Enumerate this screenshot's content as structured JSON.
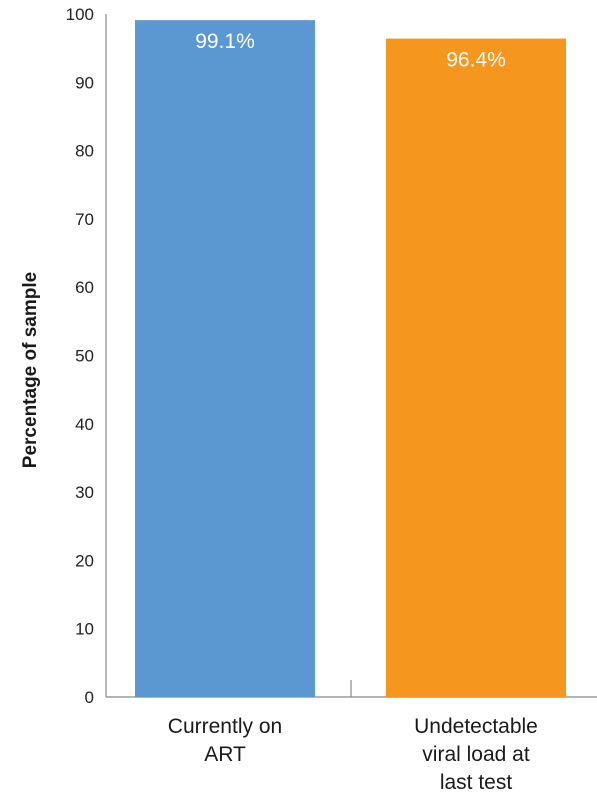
{
  "chart_data": {
    "type": "bar",
    "title": "",
    "xlabel": "",
    "ylabel": "Percentage of sample",
    "ylim": [
      0,
      100
    ],
    "yticks": [
      0,
      10,
      20,
      30,
      40,
      50,
      60,
      70,
      80,
      90,
      100
    ],
    "grid": false,
    "categories": [
      [
        "Currently on",
        "ART"
      ],
      [
        "Undetectable",
        "viral load at",
        "last test"
      ]
    ],
    "values": [
      99.1,
      96.4
    ],
    "data_labels": [
      "99.1%",
      "96.4%"
    ],
    "colors": [
      "#5b97d1",
      "#f5961e"
    ]
  }
}
